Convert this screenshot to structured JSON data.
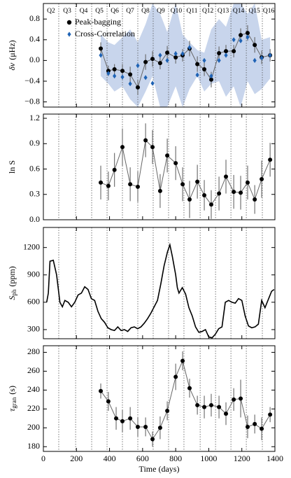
{
  "chart_data": [
    {
      "type": "errorbar",
      "ylabel": {
        "main": "δν",
        "unit": "(μHz)"
      },
      "xlim": [
        0,
        1400
      ],
      "ylim": [
        -0.9,
        1.1
      ],
      "yticks": [
        {
          "value": -0.8,
          "label": "−0.8"
        },
        {
          "value": -0.4,
          "label": "−0.4"
        },
        {
          "value": 0,
          "label": "0.0"
        },
        0.4,
        0.8
      ],
      "quarters": [
        "Q2",
        "Q3",
        "Q4",
        "Q5",
        "Q6",
        "Q7",
        "Q8",
        "Q9",
        "Q10",
        "Q11",
        "Q12",
        "Q13",
        "Q14",
        "Q15",
        "Q16"
      ],
      "quarter_boundaries": [
        93,
        195,
        292,
        385,
        478,
        571,
        664,
        757,
        850,
        948,
        1041,
        1134,
        1227,
        1324
      ],
      "legend": "upper left",
      "band": {
        "color": "#c8d5ec",
        "x": [
          347,
          393,
          430,
          478,
          525,
          571,
          618,
          660,
          706,
          749,
          800,
          842,
          884,
          931,
          973,
          1015,
          1062,
          1104,
          1151,
          1193,
          1235,
          1278,
          1320,
          1371
        ],
        "upper": [
          0.5,
          0.35,
          0.3,
          0.45,
          0.6,
          0.35,
          0.7,
          1.1,
          0.9,
          0.55,
          1.1,
          0.5,
          0.35,
          0.2,
          0.15,
          0.6,
          0.8,
          0.65,
          1.1,
          1.1,
          0.9,
          1.1,
          0.4,
          0.45
        ],
        "lower": [
          -0.3,
          -0.45,
          -0.6,
          -0.5,
          -0.75,
          -0.9,
          -0.6,
          -0.3,
          -0.9,
          -0.9,
          -0.5,
          -0.9,
          -0.55,
          -0.3,
          -0.6,
          -0.45,
          -0.4,
          -0.7,
          -0.5,
          -0.9,
          -0.4,
          -0.65,
          -0.55,
          -0.35
        ]
      },
      "series": [
        {
          "name": "Peak-bagging",
          "color": "#000000",
          "marker": "circle",
          "connect": true,
          "x": [
            347,
            393,
            430,
            478,
            525,
            571,
            618,
            660,
            706,
            749,
            800,
            842,
            884,
            931,
            973,
            1015,
            1062,
            1104,
            1151,
            1193,
            1235,
            1278,
            1320,
            1371
          ],
          "values": [
            0.23,
            -0.2,
            -0.17,
            -0.2,
            -0.27,
            -0.52,
            -0.03,
            0.03,
            -0.05,
            0.15,
            0.06,
            0.1,
            0.23,
            -0.07,
            -0.17,
            -0.37,
            0.14,
            0.18,
            0.18,
            0.49,
            0.53,
            0.3,
            0.06,
            0.1
          ],
          "errors": [
            0.12,
            0.1,
            0.1,
            0.13,
            0.15,
            0.15,
            0.15,
            0.15,
            0.12,
            0.13,
            0.12,
            0.12,
            0.15,
            0.15,
            0.13,
            0.15,
            0.13,
            0.12,
            0.12,
            0.13,
            0.15,
            0.15,
            0.13,
            0.12
          ]
        },
        {
          "name": "Cross-Correlation",
          "color": "#1f63b5",
          "marker": "diamond",
          "connect": false,
          "x": [
            347,
            393,
            430,
            478,
            525,
            571,
            618,
            660,
            706,
            749,
            800,
            842,
            884,
            931,
            973,
            1015,
            1062,
            1104,
            1151,
            1193,
            1235,
            1278,
            1320,
            1371
          ],
          "values": [
            0.1,
            -0.25,
            -0.3,
            -0.32,
            -0.45,
            -0.1,
            -0.33,
            -0.44,
            0.1,
            0.0,
            0.13,
            0.13,
            0.25,
            -0.28,
            0.0,
            -0.3,
            0.0,
            0.1,
            0.4,
            0.38,
            0.45,
            0.0,
            0.05,
            0.1
          ]
        }
      ]
    },
    {
      "type": "errorbar",
      "ylabel": {
        "main": "ln S"
      },
      "xlim": [
        0,
        1400
      ],
      "ylim": [
        0,
        1.25
      ],
      "yticks": [
        {
          "value": 0,
          "label": "0.0"
        },
        0.3,
        0.6,
        0.9,
        1.2
      ],
      "series": [
        {
          "color": "#000000",
          "marker": "circle",
          "connect": true,
          "x": [
            347,
            393,
            430,
            478,
            525,
            571,
            618,
            660,
            706,
            749,
            800,
            842,
            884,
            931,
            973,
            1015,
            1062,
            1104,
            1151,
            1193,
            1235,
            1278,
            1320,
            1371
          ],
          "values": [
            0.44,
            0.4,
            0.59,
            0.86,
            0.42,
            0.39,
            0.94,
            0.86,
            0.34,
            0.76,
            0.67,
            0.42,
            0.24,
            0.45,
            0.29,
            0.18,
            0.31,
            0.51,
            0.33,
            0.32,
            0.44,
            0.24,
            0.48,
            0.71
          ],
          "errors": [
            0.2,
            0.17,
            0.2,
            0.22,
            0.2,
            0.18,
            0.2,
            0.2,
            0.2,
            0.2,
            0.2,
            0.2,
            0.22,
            0.2,
            0.18,
            0.17,
            0.2,
            0.2,
            0.2,
            0.2,
            0.2,
            0.17,
            0.22,
            0.2
          ]
        }
      ]
    },
    {
      "type": "line",
      "ylabel": {
        "main": "S",
        "sub": "ph",
        "unit": "(ppm)"
      },
      "xlim": [
        0,
        1400
      ],
      "ylim": [
        200,
        1420
      ],
      "yticks": [
        300,
        600,
        900,
        1200
      ],
      "series": [
        {
          "color": "#000000",
          "x": [
            20,
            30,
            40,
            60,
            80,
            100,
            115,
            130,
            150,
            170,
            190,
            210,
            230,
            250,
            270,
            290,
            310,
            330,
            350,
            370,
            390,
            410,
            430,
            450,
            470,
            490,
            510,
            530,
            550,
            570,
            590,
            610,
            630,
            650,
            670,
            690,
            710,
            730,
            750,
            765,
            780,
            800,
            810,
            820,
            840,
            860,
            880,
            900,
            920,
            940,
            960,
            980,
            1000,
            1020,
            1040,
            1060,
            1080,
            1100,
            1120,
            1140,
            1160,
            1180,
            1200,
            1220,
            1240,
            1260,
            1280,
            1300,
            1320,
            1340,
            1360,
            1380,
            1395
          ],
          "values": [
            600,
            700,
            1050,
            1060,
            900,
            600,
            550,
            620,
            600,
            550,
            600,
            680,
            700,
            770,
            740,
            640,
            620,
            500,
            420,
            380,
            320,
            300,
            290,
            330,
            290,
            300,
            280,
            320,
            330,
            310,
            330,
            370,
            420,
            480,
            550,
            620,
            800,
            1000,
            1150,
            1230,
            1100,
            900,
            760,
            700,
            760,
            690,
            540,
            450,
            330,
            270,
            280,
            300,
            220,
            210,
            250,
            310,
            330,
            600,
            620,
            600,
            590,
            640,
            620,
            450,
            340,
            320,
            330,
            360,
            620,
            540,
            630,
            720,
            740
          ]
        }
      ]
    },
    {
      "type": "errorbar",
      "ylabel": {
        "main": "τ",
        "sub": "gran",
        "unit": "(s)"
      },
      "xlabel": "Time (days)",
      "xlim": [
        0,
        1400
      ],
      "ylim": [
        175,
        287
      ],
      "xticks": [
        0,
        200,
        400,
        600,
        800,
        1000,
        1200,
        1400
      ],
      "yticks": [
        180,
        200,
        220,
        240,
        260,
        280
      ],
      "series": [
        {
          "color": "#000000",
          "marker": "circle",
          "connect": true,
          "x": [
            347,
            393,
            440,
            478,
            525,
            571,
            618,
            660,
            706,
            749,
            800,
            842,
            884,
            931,
            973,
            1015,
            1062,
            1104,
            1151,
            1193,
            1235,
            1278,
            1320,
            1371
          ],
          "values": [
            239,
            228,
            210,
            207,
            210,
            201,
            201,
            188,
            200,
            218,
            254,
            271,
            242,
            224,
            222,
            224,
            222,
            215,
            230,
            231,
            201,
            204,
            199,
            214
          ],
          "errors": [
            8,
            10,
            12,
            12,
            12,
            10,
            10,
            8,
            12,
            10,
            14,
            10,
            10,
            10,
            12,
            12,
            12,
            12,
            12,
            20,
            12,
            10,
            12,
            8
          ]
        }
      ]
    }
  ]
}
